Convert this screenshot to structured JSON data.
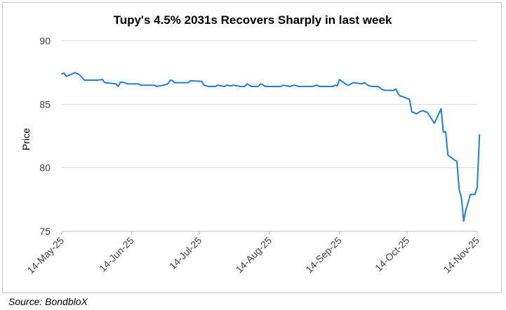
{
  "chart_data": {
    "type": "line",
    "title": "Tupy's 4.5% 2031s Recovers Sharply in last week",
    "xlabel": "",
    "ylabel": "Price",
    "ylim": [
      75,
      90
    ],
    "yticks": [
      75,
      80,
      85,
      90
    ],
    "xticks": [
      "14-May-25",
      "14-Jun-25",
      "14-Jul-25",
      "14-Aug-25",
      "14-Sep-25",
      "14-Oct-25",
      "14-Nov-25"
    ],
    "grid": "horizontal",
    "legend": "none",
    "line_color": "#1f7fe0",
    "series": [
      {
        "values": [
          [
            "2025-05-14",
            87.4
          ],
          [
            "2025-05-15",
            87.45
          ],
          [
            "2025-05-16",
            87.2
          ],
          [
            "2025-05-18",
            87.35
          ],
          [
            "2025-05-20",
            87.5
          ],
          [
            "2025-05-22",
            87.3
          ],
          [
            "2025-05-24",
            86.9
          ],
          [
            "2025-05-28",
            86.9
          ],
          [
            "2025-05-30",
            86.9
          ],
          [
            "2025-06-01",
            86.95
          ],
          [
            "2025-06-02",
            86.7
          ],
          [
            "2025-06-05",
            86.65
          ],
          [
            "2025-06-07",
            86.6
          ],
          [
            "2025-06-08",
            86.4
          ],
          [
            "2025-06-09",
            86.75
          ],
          [
            "2025-06-11",
            86.7
          ],
          [
            "2025-06-12",
            86.6
          ],
          [
            "2025-06-17",
            86.6
          ],
          [
            "2025-06-18",
            86.5
          ],
          [
            "2025-06-21",
            86.5
          ],
          [
            "2025-06-24",
            86.5
          ],
          [
            "2025-06-25",
            86.4
          ],
          [
            "2025-06-28",
            86.5
          ],
          [
            "2025-06-30",
            86.6
          ],
          [
            "2025-07-01",
            86.9
          ],
          [
            "2025-07-02",
            86.85
          ],
          [
            "2025-07-03",
            86.7
          ],
          [
            "2025-07-09",
            86.7
          ],
          [
            "2025-07-10",
            86.85
          ],
          [
            "2025-07-15",
            86.8
          ],
          [
            "2025-07-16",
            86.5
          ],
          [
            "2025-07-18",
            86.4
          ],
          [
            "2025-07-21",
            86.4
          ],
          [
            "2025-07-22",
            86.5
          ],
          [
            "2025-07-25",
            86.4
          ],
          [
            "2025-07-26",
            86.5
          ],
          [
            "2025-07-28",
            86.45
          ],
          [
            "2025-07-29",
            86.5
          ],
          [
            "2025-08-01",
            86.4
          ],
          [
            "2025-08-03",
            86.4
          ],
          [
            "2025-08-04",
            86.6
          ],
          [
            "2025-08-06",
            86.4
          ],
          [
            "2025-08-09",
            86.4
          ],
          [
            "2025-08-10",
            86.6
          ],
          [
            "2025-08-11",
            86.55
          ],
          [
            "2025-08-12",
            86.4
          ],
          [
            "2025-08-19",
            86.4
          ],
          [
            "2025-08-20",
            86.5
          ],
          [
            "2025-08-23",
            86.4
          ],
          [
            "2025-08-25",
            86.5
          ],
          [
            "2025-08-27",
            86.4
          ],
          [
            "2025-09-02",
            86.4
          ],
          [
            "2025-09-04",
            86.5
          ],
          [
            "2025-09-05",
            86.4
          ],
          [
            "2025-09-11",
            86.4
          ],
          [
            "2025-09-12",
            86.5
          ],
          [
            "2025-09-13",
            86.45
          ],
          [
            "2025-09-14",
            86.95
          ],
          [
            "2025-09-17",
            86.55
          ],
          [
            "2025-09-18",
            86.5
          ],
          [
            "2025-09-20",
            86.7
          ],
          [
            "2025-09-24",
            86.6
          ],
          [
            "2025-09-25",
            86.7
          ],
          [
            "2025-09-27",
            86.45
          ],
          [
            "2025-09-29",
            86.4
          ],
          [
            "2025-10-01",
            86.4
          ],
          [
            "2025-10-03",
            86.15
          ],
          [
            "2025-10-04",
            86.1
          ],
          [
            "2025-10-08",
            86.1
          ],
          [
            "2025-10-09",
            86.2
          ],
          [
            "2025-10-10",
            85.8
          ],
          [
            "2025-10-11",
            85.65
          ],
          [
            "2025-10-12",
            85.6
          ],
          [
            "2025-10-14",
            85.45
          ],
          [
            "2025-10-15",
            85.4
          ],
          [
            "2025-10-16",
            84.4
          ],
          [
            "2025-10-17",
            84.35
          ],
          [
            "2025-10-18",
            84.25
          ],
          [
            "2025-10-20",
            84.45
          ],
          [
            "2025-10-21",
            84.5
          ],
          [
            "2025-10-23",
            84.35
          ],
          [
            "2025-10-26",
            83.5
          ],
          [
            "2025-10-29",
            84.65
          ],
          [
            "2025-10-30",
            82.8
          ],
          [
            "2025-10-31",
            82.85
          ],
          [
            "2025-11-01",
            81.0
          ],
          [
            "2025-11-04",
            80.6
          ],
          [
            "2025-11-05",
            80.5
          ],
          [
            "2025-11-06",
            78.3
          ],
          [
            "2025-11-07",
            77.6
          ],
          [
            "2025-11-08",
            75.8
          ],
          [
            "2025-11-09",
            76.7
          ],
          [
            "2025-11-11",
            77.9
          ],
          [
            "2025-11-13",
            77.9
          ],
          [
            "2025-11-14",
            78.5
          ],
          [
            "2025-11-15",
            82.6
          ]
        ]
      }
    ],
    "source": "Source: BondbloX"
  }
}
